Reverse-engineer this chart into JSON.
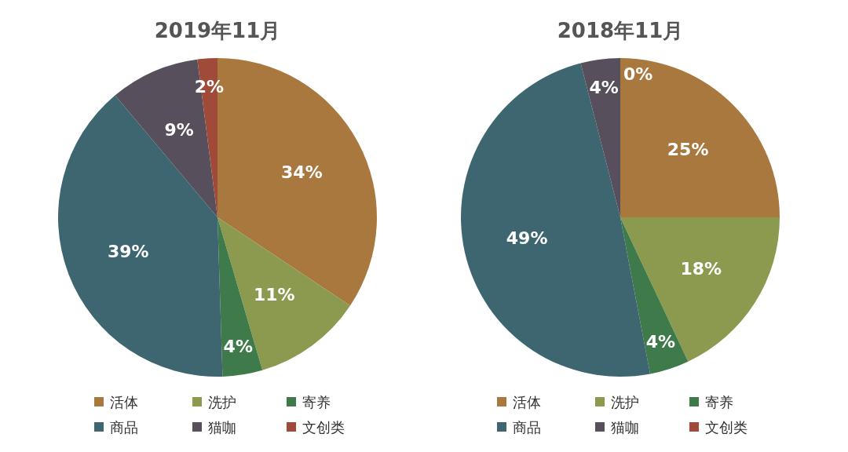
{
  "chart_data": [
    {
      "type": "pie",
      "title": "2019年11月",
      "categories": [
        "活体",
        "洗护",
        "寄养",
        "商品",
        "猫咖",
        "文创类"
      ],
      "values": [
        34,
        11,
        4,
        39,
        9,
        2
      ],
      "value_labels": [
        "34%",
        "11%",
        "4%",
        "39%",
        "9%",
        "2%"
      ],
      "colors": [
        "#a8783e",
        "#8b9a4f",
        "#3f7a4a",
        "#3d6670",
        "#57505c",
        "#a04a3a"
      ],
      "legend": "bottom"
    },
    {
      "type": "pie",
      "title": "2018年11月",
      "categories": [
        "活体",
        "洗护",
        "寄养",
        "商品",
        "猫咖",
        "文创类"
      ],
      "values": [
        25,
        18,
        4,
        49,
        4,
        0
      ],
      "value_labels": [
        "25%",
        "18%",
        "4%",
        "49%",
        "4%",
        "0%"
      ],
      "colors": [
        "#a8783e",
        "#8b9a4f",
        "#3f7a4a",
        "#3d6670",
        "#57505c",
        "#a04a3a"
      ],
      "legend": "bottom"
    }
  ]
}
